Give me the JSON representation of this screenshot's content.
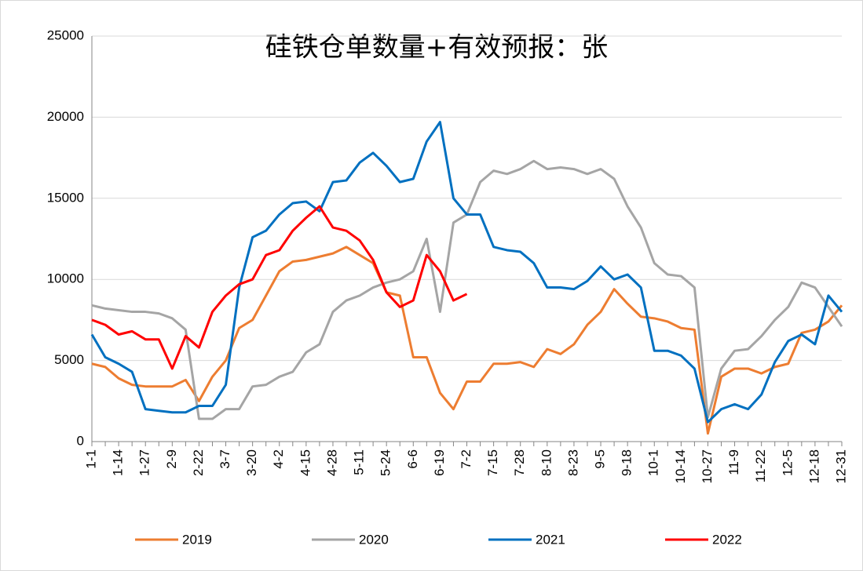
{
  "chart_data": {
    "type": "line",
    "title": "硅铁仓单数量+有效预报：张",
    "categories": [
      "1-1",
      null,
      "1-14",
      null,
      "1-27",
      null,
      "2-9",
      null,
      "2-22",
      null,
      "3-7",
      null,
      "3-20",
      null,
      "4-2",
      null,
      "4-15",
      null,
      "4-28",
      null,
      "5-11",
      null,
      "5-24",
      null,
      "6-6",
      null,
      "6-19",
      null,
      "7-2",
      null,
      "7-15",
      null,
      "7-28",
      null,
      "8-10",
      null,
      "8-23",
      null,
      "9-5",
      null,
      "9-18",
      null,
      "10-1",
      null,
      "10-14",
      null,
      "10-27",
      null,
      "11-9",
      null,
      "11-22",
      null,
      "12-5",
      null,
      "12-18",
      null,
      "12-31"
    ],
    "series": [
      {
        "name": "2019",
        "color": "#ed7d31",
        "values": [
          4800,
          4600,
          3900,
          3500,
          3400,
          3400,
          3400,
          3800,
          2500,
          4000,
          5000,
          7000,
          7500,
          9000,
          10500,
          11100,
          11200,
          11400,
          11600,
          12000,
          11500,
          11000,
          9200,
          9000,
          5200,
          5200,
          3000,
          2000,
          3700,
          3700,
          4800,
          4800,
          4900,
          4600,
          5700,
          5400,
          6000,
          7200,
          8000,
          9400,
          8500,
          7700,
          7600,
          7400,
          7000,
          6900,
          500,
          4000,
          4500,
          4500,
          4200,
          4600,
          4800,
          6700,
          6900,
          7400,
          8400
        ]
      },
      {
        "name": "2020",
        "color": "#a5a5a5",
        "values": [
          8400,
          8200,
          8100,
          8000,
          8000,
          7900,
          7600,
          6900,
          1400,
          1400,
          2000,
          2000,
          3400,
          3500,
          4000,
          4300,
          5500,
          6000,
          8000,
          8700,
          9000,
          9500,
          9800,
          10000,
          10500,
          12500,
          8000,
          13500,
          14000,
          16000,
          16700,
          16500,
          16800,
          17300,
          16800,
          16900,
          16800,
          16500,
          16800,
          16200,
          14500,
          13200,
          11000,
          10300,
          10200,
          9500,
          1500,
          4500,
          5600,
          5700,
          6500,
          7500,
          8300,
          9800,
          9500,
          8300,
          7100
        ]
      },
      {
        "name": "2021",
        "color": "#0070c0",
        "values": [
          6600,
          5200,
          4800,
          4300,
          2000,
          1900,
          1800,
          1800,
          2200,
          2200,
          3500,
          9500,
          12600,
          13000,
          14000,
          14700,
          14800,
          14200,
          16000,
          16100,
          17200,
          17800,
          17000,
          16000,
          16200,
          18500,
          19700,
          15000,
          14000,
          14000,
          12000,
          11800,
          11700,
          11000,
          9500,
          9500,
          9400,
          9900,
          10800,
          10000,
          10300,
          9500,
          5600,
          5600,
          5300,
          4500,
          1200,
          2000,
          2300,
          2000,
          2900,
          4900,
          6200,
          6600,
          6000,
          9000,
          8000
        ]
      },
      {
        "name": "2022",
        "color": "#ff0000",
        "values": [
          7500,
          7200,
          6600,
          6800,
          6300,
          6300,
          4500,
          6500,
          5800,
          8000,
          9000,
          9700,
          10000,
          11500,
          11800,
          13000,
          13800,
          14500,
          13200,
          13000,
          12400,
          11200,
          9200,
          8300,
          8700,
          11500,
          10500,
          8700,
          9100,
          null,
          null,
          null,
          null,
          null,
          null,
          null,
          null,
          null,
          null,
          null,
          null,
          null,
          null,
          null,
          null,
          null,
          null,
          null,
          null,
          null,
          null,
          null,
          null,
          null,
          null,
          null,
          null
        ]
      }
    ],
    "ylim": [
      0,
      25000
    ],
    "yticks": [
      0,
      5000,
      10000,
      15000,
      20000,
      25000
    ],
    "grid": true,
    "legend": "bottom"
  }
}
